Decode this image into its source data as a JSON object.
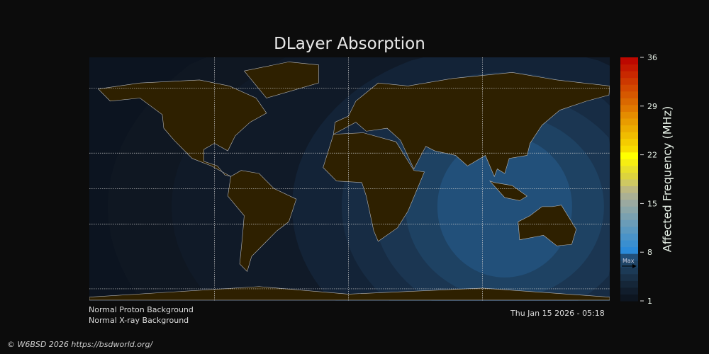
{
  "chart_data": {
    "type": "heatmap",
    "title": "DLayer Absorption",
    "colorbar": {
      "label": "Affected Frequency (MHz)",
      "range": [
        1,
        36
      ],
      "ticks": [
        "36",
        "29",
        "22",
        "15",
        "8",
        "1"
      ],
      "marker_label": "Max",
      "marker_value": 6,
      "colors": [
        "#0d1520",
        "#111d2c",
        "#152638",
        "#193047",
        "#1c3a56",
        "#1f4567",
        "#22507a",
        "#2b8ad8",
        "#3a8fd0",
        "#4a93c8",
        "#5a98c0",
        "#6a9cb8",
        "#7aa1b0",
        "#8aa6a8",
        "#9aa9a0",
        "#aab094",
        "#bcb880",
        "#cec862",
        "#dcd43e",
        "#e8e02a",
        "#f6ee12",
        "#ffff00",
        "#f8dc00",
        "#f4cc00",
        "#f0bc00",
        "#ecac00",
        "#e89c00",
        "#e48c00",
        "#e07800",
        "#da6800",
        "#d65800",
        "#d24800",
        "#cc3800",
        "#c82800",
        "#c21800",
        "#bc0800"
      ]
    },
    "peak_region": "Southeast Asia / Australia",
    "peak_value_mhz": 6,
    "grid": true
  },
  "notes": {
    "proton": "Normal Proton Background",
    "xray": "Normal X-ray Background",
    "timestamp": "Thu Jan 15 2026 - 05:18",
    "credit": "© W6BSD 2026 https://bsdworld.org/"
  },
  "colors": {
    "background": "#0c0c0c",
    "map_ocean": "#0c1420",
    "land": "#2e2000"
  }
}
